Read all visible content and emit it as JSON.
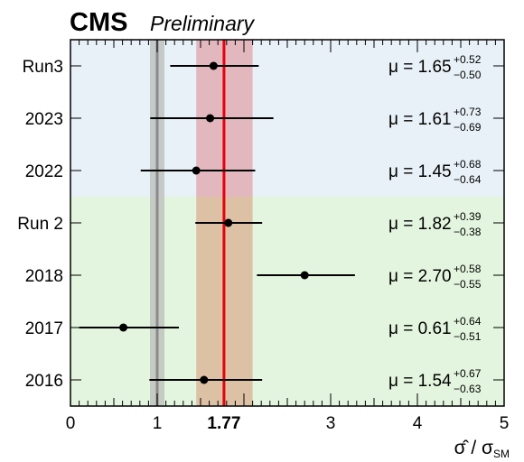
{
  "header": {
    "experiment": "CMS",
    "status": "Preliminary"
  },
  "chart_data": {
    "type": "scatter",
    "xlabel": "σ̂ / σ_SM",
    "xlim": [
      0,
      5
    ],
    "x_ticks": [
      "0",
      "1",
      "1.77",
      "3",
      "4",
      "5"
    ],
    "x_tick_values": [
      0,
      1,
      1.77,
      3,
      4,
      5
    ],
    "sm_reference": 1.0,
    "combined": {
      "value": 1.77,
      "band": [
        1.45,
        2.1
      ]
    },
    "categories": [
      "Run3",
      "2023",
      "2022",
      "Run 2",
      "2018",
      "2017",
      "2016"
    ],
    "series": [
      {
        "points": [
          {
            "label": "Run3",
            "value": 1.65,
            "up": 0.52,
            "down": 0.5,
            "text": "μ = 1.65",
            "up_text": "+0.52",
            "down_text": "−0.50",
            "group": "run3"
          },
          {
            "label": "2023",
            "value": 1.61,
            "up": 0.73,
            "down": 0.69,
            "text": "μ = 1.61",
            "up_text": "+0.73",
            "down_text": "−0.69",
            "group": "run3"
          },
          {
            "label": "2022",
            "value": 1.45,
            "up": 0.68,
            "down": 0.64,
            "text": "μ = 1.45",
            "up_text": "+0.68",
            "down_text": "−0.64",
            "group": "run3"
          },
          {
            "label": "Run 2",
            "value": 1.82,
            "up": 0.39,
            "down": 0.38,
            "text": "μ = 1.82",
            "up_text": "+0.39",
            "down_text": "−0.38",
            "group": "run2"
          },
          {
            "label": "2018",
            "value": 2.7,
            "up": 0.58,
            "down": 0.55,
            "text": "μ = 2.70",
            "up_text": "+0.58",
            "down_text": "−0.55",
            "group": "run2"
          },
          {
            "label": "2017",
            "value": 0.61,
            "up": 0.64,
            "down": 0.51,
            "text": "μ = 0.61",
            "up_text": "+0.64",
            "down_text": "−0.51",
            "group": "run2"
          },
          {
            "label": "2016",
            "value": 1.54,
            "up": 0.67,
            "down": 0.63,
            "text": "μ = 1.54",
            "up_text": "+0.67",
            "down_text": "−0.63",
            "group": "run2"
          }
        ]
      }
    ],
    "colors": {
      "run3_background": "#e8f1f7",
      "run2_background": "#e3f5de",
      "combined_line": "#e8000b",
      "combined_band_run3": "#e3b7be",
      "combined_band_run2": "#dcc1a5",
      "sm_band": "#b9bcb9",
      "sm_line": "#8a8a8a",
      "points": "#000000"
    }
  }
}
